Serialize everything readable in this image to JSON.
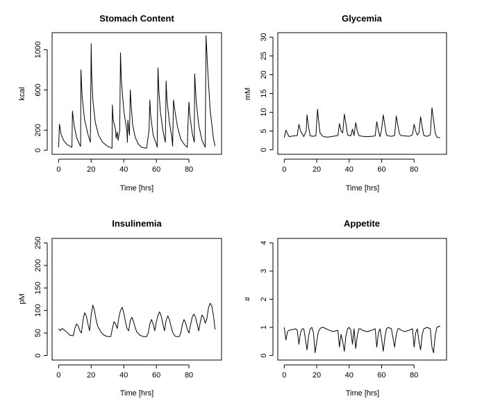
{
  "chart_data": [
    {
      "type": "line",
      "title": "Stomach Content",
      "xlabel": "Time [hrs]",
      "ylabel": "kcal",
      "xlim": [
        -4,
        100
      ],
      "ylim": [
        -40,
        1170
      ],
      "xticks": [
        0,
        20,
        40,
        60,
        80
      ],
      "yticks": [
        0,
        200,
        600,
        1000
      ],
      "grid": false,
      "series": [
        {
          "x": [
            0,
            0.5,
            1.5,
            3,
            5,
            7,
            8.2,
            8.5,
            9.5,
            11,
            12.8,
            13.5,
            13.7,
            14.5,
            16,
            18,
            19.5,
            20,
            20.3,
            21,
            22.5,
            24.5,
            27,
            30,
            32.8,
            33,
            33.5,
            35,
            35.3,
            36,
            36.5,
            37.5,
            38,
            38.5,
            40,
            42,
            42.2,
            42.5,
            43.5,
            44,
            44.5,
            45.5,
            47,
            49,
            51,
            54,
            55.5,
            56,
            56.5,
            58,
            60,
            60.5,
            61,
            61.5,
            62.5,
            64,
            65.5,
            66,
            66.5,
            68,
            69.5,
            70,
            70.5,
            71.5,
            73,
            75,
            77.5,
            79,
            79.5,
            80,
            80.5,
            82,
            83.3,
            83.5,
            84.5,
            86,
            88,
            90,
            90.5,
            91.5,
            93,
            95,
            96
          ],
          "y": [
            30,
            260,
            160,
            100,
            60,
            40,
            30,
            390,
            250,
            130,
            60,
            40,
            800,
            520,
            300,
            160,
            80,
            1060,
            760,
            500,
            280,
            150,
            80,
            40,
            20,
            450,
            300,
            200,
            120,
            180,
            100,
            200,
            970,
            700,
            400,
            180,
            80,
            300,
            150,
            600,
            450,
            250,
            130,
            60,
            30,
            20,
            200,
            500,
            350,
            150,
            60,
            30,
            820,
            600,
            380,
            200,
            80,
            690,
            500,
            280,
            130,
            40,
            500,
            380,
            230,
            110,
            50,
            30,
            300,
            480,
            350,
            170,
            80,
            760,
            480,
            250,
            100,
            30,
            1140,
            800,
            400,
            120,
            40
          ]
        }
      ]
    },
    {
      "type": "line",
      "title": "Glycemia",
      "xlabel": "Time [hrs]",
      "ylabel": "mM",
      "xlim": [
        -4,
        100
      ],
      "ylim": [
        -1.2,
        31.2
      ],
      "xticks": [
        0,
        20,
        40,
        60,
        80
      ],
      "yticks": [
        0,
        5,
        10,
        15,
        20,
        25,
        30
      ],
      "grid": false,
      "series": [
        {
          "x": [
            0,
            1,
            2,
            3,
            4,
            6,
            8,
            9,
            10,
            12,
            13.5,
            14,
            15,
            16,
            18,
            19.5,
            20.5,
            21,
            22,
            24,
            27,
            30,
            33,
            34,
            35,
            36,
            37,
            38,
            39,
            40,
            41,
            42,
            43,
            44,
            45,
            46,
            48,
            51,
            54,
            56,
            57,
            58,
            59,
            60,
            61,
            62,
            63,
            64,
            66,
            68,
            69,
            70,
            71,
            72,
            74,
            77,
            79,
            80,
            81,
            82,
            83,
            84,
            85,
            86,
            88,
            90,
            91,
            92,
            93,
            94,
            96
          ],
          "y": [
            3.3,
            5.2,
            4.3,
            3.5,
            3.6,
            3.7,
            3.8,
            6.8,
            5.0,
            3.5,
            5.0,
            9.3,
            6.0,
            3.7,
            3.6,
            3.8,
            10.8,
            8.5,
            4.5,
            3.5,
            3.4,
            3.6,
            3.8,
            7.0,
            5.0,
            4.5,
            9.5,
            7.0,
            4.0,
            3.8,
            3.7,
            5.5,
            3.8,
            7.2,
            5.0,
            3.8,
            3.6,
            3.5,
            3.6,
            3.7,
            7.5,
            5.0,
            3.5,
            5.5,
            9.3,
            6.5,
            4.0,
            3.7,
            3.6,
            3.8,
            9.0,
            6.5,
            4.2,
            3.8,
            3.7,
            3.6,
            4.0,
            6.8,
            5.0,
            3.9,
            4.5,
            8.8,
            6.0,
            3.8,
            3.6,
            4.0,
            11.2,
            8.0,
            4.5,
            3.4,
            3.2
          ]
        }
      ]
    },
    {
      "type": "line",
      "title": "Insulinemia",
      "xlabel": "Time [hrs]",
      "ylabel": "pM",
      "xlim": [
        -4,
        100
      ],
      "ylim": [
        -10,
        260
      ],
      "xticks": [
        0,
        20,
        40,
        60,
        80
      ],
      "yticks": [
        0,
        50,
        100,
        150,
        200,
        250
      ],
      "grid": false,
      "series": [
        {
          "x": [
            0,
            1,
            2,
            3,
            5,
            7,
            9,
            10,
            11,
            12,
            13,
            14,
            15,
            16,
            17,
            18,
            19,
            20,
            21,
            22,
            23,
            24,
            26,
            28,
            30,
            32,
            33,
            34,
            35,
            36,
            37,
            38,
            39,
            40,
            41,
            42,
            43,
            44,
            45,
            46,
            47,
            48,
            50,
            52,
            54,
            55,
            56,
            57,
            58,
            59,
            60,
            61,
            62,
            63,
            64,
            65,
            66,
            67,
            68,
            69,
            70,
            71,
            72,
            73,
            74,
            75,
            76,
            77,
            78,
            79,
            80,
            81,
            82,
            83,
            84,
            85,
            86,
            87,
            88,
            89,
            90,
            91,
            92,
            93,
            94,
            95,
            96
          ],
          "y": [
            60,
            55,
            60,
            58,
            52,
            45,
            44,
            60,
            70,
            66,
            55,
            50,
            80,
            95,
            88,
            70,
            55,
            90,
            112,
            100,
            80,
            65,
            52,
            45,
            42,
            42,
            60,
            75,
            70,
            60,
            85,
            100,
            107,
            95,
            75,
            60,
            55,
            78,
            85,
            75,
            62,
            52,
            45,
            42,
            42,
            50,
            70,
            80,
            70,
            55,
            75,
            90,
            97,
            88,
            70,
            55,
            78,
            88,
            80,
            65,
            52,
            45,
            42,
            42,
            42,
            50,
            70,
            80,
            72,
            58,
            50,
            68,
            85,
            92,
            85,
            70,
            55,
            75,
            90,
            85,
            72,
            82,
            106,
            116,
            110,
            90,
            58
          ]
        }
      ]
    },
    {
      "type": "line",
      "title": "Appetite",
      "xlabel": "Time [hrs]",
      "ylabel": "#",
      "xlim": [
        -4,
        100
      ],
      "ylim": [
        -0.16,
        4.16
      ],
      "xticks": [
        0,
        20,
        40,
        60,
        80
      ],
      "yticks": [
        0,
        1,
        2,
        3,
        4
      ],
      "grid": false,
      "series": [
        {
          "x": [
            0,
            1,
            2,
            3,
            5,
            7,
            8,
            9,
            10,
            11,
            12,
            13,
            14,
            15,
            16,
            17,
            18,
            19,
            20,
            21,
            22,
            23,
            24,
            27,
            30,
            33,
            34,
            35,
            36,
            37,
            38,
            39,
            40,
            41,
            42,
            43,
            44,
            45,
            46,
            47,
            48,
            51,
            54,
            56,
            57,
            58,
            59,
            60,
            61,
            62,
            63,
            64,
            66,
            68,
            69,
            70,
            71,
            72,
            74,
            77,
            79,
            80,
            81,
            82,
            83,
            84,
            85,
            86,
            88,
            90,
            91,
            92,
            93,
            94,
            96
          ],
          "y": [
            1.0,
            0.55,
            0.85,
            0.9,
            0.92,
            0.95,
            0.9,
            0.4,
            0.8,
            0.95,
            0.95,
            0.6,
            0.2,
            0.7,
            0.95,
            1.0,
            0.8,
            0.1,
            0.5,
            0.85,
            0.95,
            1.0,
            1.0,
            0.92,
            0.85,
            0.9,
            0.3,
            0.75,
            0.5,
            0.15,
            0.7,
            0.95,
            1.0,
            0.9,
            0.4,
            0.95,
            0.25,
            0.7,
            0.95,
            0.95,
            0.9,
            0.85,
            0.9,
            0.95,
            0.3,
            0.8,
            0.95,
            0.6,
            0.15,
            0.65,
            0.95,
            1.0,
            0.95,
            0.3,
            0.75,
            0.95,
            0.95,
            0.9,
            0.85,
            0.9,
            0.95,
            0.3,
            0.8,
            0.95,
            0.5,
            0.2,
            0.75,
            0.95,
            1.0,
            0.95,
            0.3,
            0.1,
            0.7,
            1.0,
            1.05
          ]
        }
      ]
    }
  ]
}
